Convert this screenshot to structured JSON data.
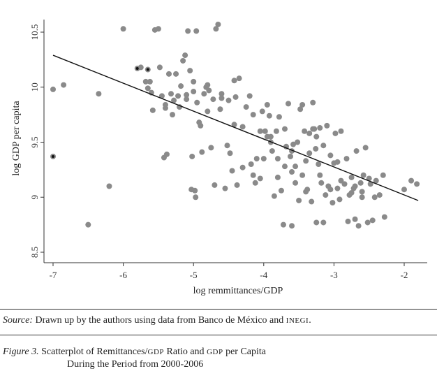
{
  "chart_data": {
    "type": "scatter",
    "xlabel": "log remmittances/GDP",
    "ylabel": "log GDP per capita",
    "xlim": [
      -7.1,
      -1.78
    ],
    "ylim": [
      8.5,
      10.56
    ],
    "xticks": [
      "-7",
      "-6",
      "-5",
      "-4",
      "-3",
      "-2"
    ],
    "yticks": [
      "8.5",
      "9",
      "9.5",
      "10",
      "10.5"
    ],
    "grid": false,
    "fit_line": {
      "x": [
        -7.0,
        -1.8
      ],
      "y": [
        10.29,
        8.97
      ]
    },
    "highlighted_points": [
      {
        "x": -7.0,
        "y": 9.37
      },
      {
        "x": -5.8,
        "y": 10.17
      },
      {
        "x": -5.65,
        "y": 10.16
      }
    ],
    "points": [
      [
        -7.0,
        9.98
      ],
      [
        -6.85,
        10.02
      ],
      [
        -6.5,
        8.75
      ],
      [
        -6.35,
        9.94
      ],
      [
        -6.2,
        9.1
      ],
      [
        -6.0,
        10.53
      ],
      [
        -5.75,
        10.18
      ],
      [
        -5.68,
        10.05
      ],
      [
        -5.65,
        9.99
      ],
      [
        -5.62,
        10.05
      ],
      [
        -5.6,
        9.95
      ],
      [
        -5.58,
        9.79
      ],
      [
        -5.55,
        10.52
      ],
      [
        -5.5,
        10.53
      ],
      [
        -5.48,
        10.18
      ],
      [
        -5.45,
        9.92
      ],
      [
        -5.42,
        9.36
      ],
      [
        -5.4,
        9.84
      ],
      [
        -5.4,
        9.81
      ],
      [
        -5.38,
        9.39
      ],
      [
        -5.35,
        10.12
      ],
      [
        -5.32,
        9.94
      ],
      [
        -5.3,
        9.75
      ],
      [
        -5.25,
        10.12
      ],
      [
        -5.22,
        9.92
      ],
      [
        -5.2,
        9.82
      ],
      [
        -5.18,
        10.01
      ],
      [
        -5.15,
        10.24
      ],
      [
        -5.12,
        10.29
      ],
      [
        -5.1,
        9.89
      ],
      [
        -5.08,
        10.51
      ],
      [
        -5.05,
        10.15
      ],
      [
        -5.03,
        9.07
      ],
      [
        -5.02,
        9.37
      ],
      [
        -5.0,
        9.96
      ],
      [
        -4.98,
        9.06
      ],
      [
        -4.97,
        9.0
      ],
      [
        -4.96,
        10.51
      ],
      [
        -4.95,
        9.86
      ],
      [
        -4.92,
        9.68
      ],
      [
        -4.9,
        9.65
      ],
      [
        -4.88,
        9.41
      ],
      [
        -4.85,
        9.94
      ],
      [
        -4.82,
        10.0
      ],
      [
        -4.8,
        9.78
      ],
      [
        -4.78,
        9.97
      ],
      [
        -4.75,
        9.45
      ],
      [
        -4.72,
        9.89
      ],
      [
        -4.7,
        9.11
      ],
      [
        -4.68,
        10.53
      ],
      [
        -4.65,
        10.57
      ],
      [
        -4.62,
        9.8
      ],
      [
        -4.6,
        9.94
      ],
      [
        -4.55,
        9.08
      ],
      [
        -4.52,
        9.47
      ],
      [
        -4.5,
        9.88
      ],
      [
        -4.48,
        9.4
      ],
      [
        -4.45,
        9.24
      ],
      [
        -4.42,
        10.06
      ],
      [
        -4.4,
        9.91
      ],
      [
        -4.38,
        9.11
      ],
      [
        -4.35,
        10.08
      ],
      [
        -4.3,
        9.64
      ],
      [
        -4.2,
        9.92
      ],
      [
        -4.18,
        9.3
      ],
      [
        -4.15,
        9.75
      ],
      [
        -4.12,
        9.13
      ],
      [
        -4.1,
        9.35
      ],
      [
        -4.05,
        9.17
      ],
      [
        -4.02,
        9.78
      ],
      [
        -4.0,
        9.35
      ],
      [
        -3.98,
        9.6
      ],
      [
        -3.95,
        9.84
      ],
      [
        -3.92,
        9.74
      ],
      [
        -3.9,
        9.55
      ],
      [
        -3.88,
        9.42
      ],
      [
        -3.85,
        9.01
      ],
      [
        -3.82,
        9.6
      ],
      [
        -3.8,
        9.18
      ],
      [
        -3.78,
        9.73
      ],
      [
        -3.75,
        9.06
      ],
      [
        -3.72,
        8.75
      ],
      [
        -3.7,
        9.28
      ],
      [
        -3.68,
        9.46
      ],
      [
        -3.65,
        9.85
      ],
      [
        -3.62,
        9.37
      ],
      [
        -3.6,
        8.74
      ],
      [
        -3.58,
        9.48
      ],
      [
        -3.55,
        9.13
      ],
      [
        -3.52,
        9.5
      ],
      [
        -3.5,
        8.97
      ],
      [
        -3.48,
        9.8
      ],
      [
        -3.45,
        9.84
      ],
      [
        -3.42,
        9.6
      ],
      [
        -3.4,
        9.33
      ],
      [
        -3.38,
        9.07
      ],
      [
        -3.35,
        9.58
      ],
      [
        -3.32,
        8.96
      ],
      [
        -3.3,
        9.86
      ],
      [
        -3.28,
        9.62
      ],
      [
        -3.26,
        9.44
      ],
      [
        -3.25,
        8.77
      ],
      [
        -3.22,
        9.3
      ],
      [
        -3.2,
        9.63
      ],
      [
        -3.18,
        9.13
      ],
      [
        -3.15,
        8.77
      ],
      [
        -3.12,
        9.02
      ],
      [
        -3.1,
        9.65
      ],
      [
        -3.08,
        9.1
      ],
      [
        -3.05,
        9.38
      ],
      [
        -3.02,
        8.95
      ],
      [
        -3.0,
        9.31
      ],
      [
        -2.98,
        9.58
      ],
      [
        -2.95,
        9.08
      ],
      [
        -2.92,
        8.98
      ],
      [
        -2.9,
        9.6
      ],
      [
        -2.85,
        9.12
      ],
      [
        -2.82,
        9.35
      ],
      [
        -2.8,
        8.78
      ],
      [
        -2.78,
        9.02
      ],
      [
        -2.75,
        9.04
      ],
      [
        -2.72,
        9.08
      ],
      [
        -2.7,
        8.8
      ],
      [
        -2.68,
        9.42
      ],
      [
        -2.65,
        8.74
      ],
      [
        -2.62,
        9.13
      ],
      [
        -2.6,
        9.0
      ],
      [
        -2.58,
        9.2
      ],
      [
        -2.55,
        9.45
      ],
      [
        -2.52,
        8.77
      ],
      [
        -2.5,
        9.17
      ],
      [
        -2.48,
        9.12
      ],
      [
        -2.45,
        8.79
      ],
      [
        -2.42,
        9.0
      ],
      [
        -2.4,
        9.15
      ],
      [
        -2.35,
        9.02
      ],
      [
        -2.3,
        9.2
      ],
      [
        -2.28,
        8.82
      ],
      [
        -2.0,
        9.07
      ],
      [
        -1.9,
        9.15
      ],
      [
        -1.82,
        9.12
      ],
      [
        -3.9,
        9.5
      ],
      [
        -3.6,
        9.42
      ],
      [
        -4.25,
        9.82
      ],
      [
        -4.6,
        9.9
      ],
      [
        -5.28,
        9.88
      ],
      [
        -3.35,
        9.4
      ],
      [
        -3.15,
        9.47
      ],
      [
        -2.9,
        9.15
      ],
      [
        -3.7,
        9.62
      ],
      [
        -3.95,
        9.55
      ],
      [
        -4.8,
        10.02
      ],
      [
        -5.0,
        10.05
      ],
      [
        -3.45,
        9.2
      ],
      [
        -3.55,
        9.28
      ],
      [
        -2.6,
        9.05
      ],
      [
        -3.25,
        9.55
      ],
      [
        -3.05,
        9.07
      ],
      [
        -4.05,
        9.6
      ],
      [
        -3.8,
        9.35
      ],
      [
        -3.3,
        9.62
      ],
      [
        -2.95,
        9.32
      ],
      [
        -4.42,
        9.66
      ],
      [
        -5.1,
        9.93
      ],
      [
        -3.4,
        9.05
      ],
      [
        -3.6,
        9.23
      ],
      [
        -2.75,
        9.18
      ],
      [
        -4.3,
        9.27
      ],
      [
        -4.15,
        9.2
      ],
      [
        -3.2,
        9.2
      ],
      [
        -2.7,
        9.1
      ]
    ]
  },
  "source": {
    "label": "Source:",
    "text": "Drawn up by the authors using data from Banco de México and INEGI."
  },
  "caption": {
    "fig": "Figure 3.",
    "line1": "Scatterplot of Remittances/GDP Ratio and GDP per Capita",
    "line2": "During the Period from 2000-2006"
  }
}
